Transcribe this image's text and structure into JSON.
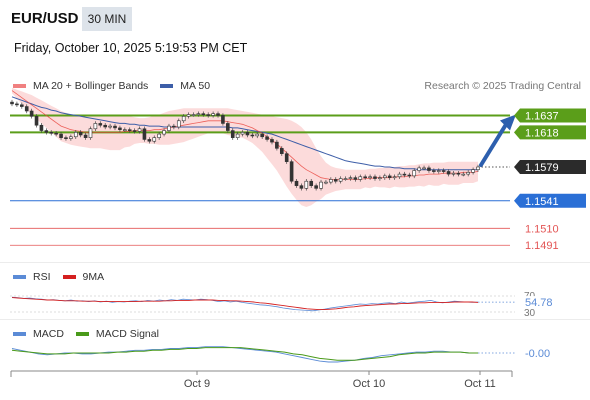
{
  "header": {
    "symbol": "EUR/USD",
    "timeframe": "30 MIN",
    "datetime": "Friday, October 10, 2025 5:19:53 PM CET"
  },
  "main_legend": {
    "ma20_bb": "MA 20 + Bollinger Bands",
    "ma50": "MA 50",
    "credit": "Research © 2025 Trading Central"
  },
  "rsi_legend": {
    "rsi": "RSI",
    "ma9": "9MA"
  },
  "macd_legend": {
    "macd": "MACD",
    "signal": "MACD Signal"
  },
  "colors": {
    "ma20": "#e8413a",
    "bollinger_fill": "#fbd5d5",
    "ma50": "#3d5ea8",
    "resistance": "#5b9e1a",
    "support": "#2a6fd6",
    "target": "#e35555",
    "arrow": "#2d5fae",
    "price_tag": "#2b2b2b",
    "rsi": "#5b8bd6",
    "macd_signal": "#4a9a1a"
  },
  "chart_data": [
    {
      "type": "candlestick",
      "title": "EUR/USD 30 MIN",
      "x_ticks": [
        "Oct 9",
        "Oct 10",
        "Oct 11"
      ],
      "y_range": [
        1.148,
        1.166
      ],
      "last_price": 1.1579,
      "levels": [
        {
          "value": 1.1637,
          "label": "1.1637",
          "kind": "resistance"
        },
        {
          "value": 1.1618,
          "label": "1.1618",
          "kind": "resistance"
        },
        {
          "value": 1.1579,
          "label": "1.1579",
          "kind": "last"
        },
        {
          "value": 1.1541,
          "label": "1.1541",
          "kind": "support"
        },
        {
          "value": 1.151,
          "label": "1.1510",
          "kind": "target"
        },
        {
          "value": 1.1491,
          "label": "1.1491",
          "kind": "target"
        }
      ],
      "close": [
        1.165,
        1.1649,
        1.1647,
        1.1642,
        1.1636,
        1.1626,
        1.162,
        1.1618,
        1.1617,
        1.1616,
        1.1612,
        1.1611,
        1.1613,
        1.1618,
        1.1615,
        1.1612,
        1.1622,
        1.1628,
        1.1626,
        1.1624,
        1.1625,
        1.1623,
        1.1621,
        1.1621,
        1.162,
        1.1619,
        1.1622,
        1.161,
        1.1608,
        1.1612,
        1.1616,
        1.162,
        1.1625,
        1.1624,
        1.1631,
        1.1636,
        1.1638,
        1.1638,
        1.1639,
        1.1638,
        1.1637,
        1.1639,
        1.1637,
        1.1628,
        1.162,
        1.1612,
        1.1616,
        1.1618,
        1.1615,
        1.1614,
        1.1616,
        1.1613,
        1.161,
        1.1607,
        1.16,
        1.1594,
        1.1585,
        1.1563,
        1.1558,
        1.1555,
        1.1563,
        1.1558,
        1.1555,
        1.1562,
        1.1562,
        1.1565,
        1.1563,
        1.1566,
        1.1566,
        1.1567,
        1.1565,
        1.1568,
        1.1567,
        1.1568,
        1.1566,
        1.1567,
        1.1569,
        1.1567,
        1.1568,
        1.1571,
        1.157,
        1.1569,
        1.1575,
        1.1578,
        1.1578,
        1.1575,
        1.1574,
        1.1575,
        1.1574,
        1.1571,
        1.1572,
        1.1571,
        1.1571,
        1.1573,
        1.1576,
        1.1579
      ],
      "ma20": [
        1.1665,
        1.1661,
        1.1657,
        1.1653,
        1.1649,
        1.1645,
        1.1641,
        1.1637,
        1.1633,
        1.1629,
        1.1625,
        1.1623,
        1.1621,
        1.162,
        1.1619,
        1.1618,
        1.1618,
        1.1618,
        1.1618,
        1.1618,
        1.1618,
        1.1618,
        1.1618,
        1.1619,
        1.1619,
        1.162,
        1.162,
        1.162,
        1.162,
        1.1621,
        1.1621,
        1.1622,
        1.1623,
        1.1624,
        1.1625,
        1.1626,
        1.1627,
        1.1628,
        1.1629,
        1.163,
        1.1631,
        1.1631,
        1.1631,
        1.1631,
        1.163,
        1.1629,
        1.1628,
        1.1627,
        1.1625,
        1.1623,
        1.162,
        1.1617,
        1.1613,
        1.1609,
        1.1605,
        1.16,
        1.1595,
        1.159,
        1.1585,
        1.158,
        1.1576,
        1.1573,
        1.157,
        1.1567,
        1.1566,
        1.1565,
        1.1565,
        1.1565,
        1.1565,
        1.1565,
        1.1565,
        1.1565,
        1.1566,
        1.1566,
        1.1567,
        1.1567,
        1.1567,
        1.1567,
        1.1568,
        1.1568,
        1.1568,
        1.1569,
        1.1569,
        1.157,
        1.157,
        1.1571,
        1.1571,
        1.1571,
        1.1572,
        1.1572,
        1.1572,
        1.1572,
        1.1573,
        1.1573,
        1.1573,
        1.1574
      ],
      "bb_upper": [
        1.1668,
        1.1666,
        1.1664,
        1.1662,
        1.166,
        1.1657,
        1.1654,
        1.1651,
        1.1648,
        1.1645,
        1.1642,
        1.164,
        1.1638,
        1.1637,
        1.1636,
        1.1636,
        1.1636,
        1.1636,
        1.1636,
        1.1637,
        1.1638,
        1.1638,
        1.1638,
        1.1637,
        1.1636,
        1.1635,
        1.1634,
        1.1634,
        1.1635,
        1.1637,
        1.1638,
        1.164,
        1.1642,
        1.1643,
        1.1644,
        1.1645,
        1.1645,
        1.1645,
        1.1645,
        1.1645,
        1.1645,
        1.1645,
        1.1645,
        1.1645,
        1.1645,
        1.1644,
        1.1643,
        1.1642,
        1.1641,
        1.164,
        1.1639,
        1.1638,
        1.1637,
        1.1636,
        1.1635,
        1.1634,
        1.1633,
        1.1631,
        1.1628,
        1.1624,
        1.1618,
        1.161,
        1.16,
        1.1591,
        1.1584,
        1.158,
        1.1578,
        1.1577,
        1.1576,
        1.1576,
        1.1576,
        1.1576,
        1.1576,
        1.1577,
        1.1577,
        1.1578,
        1.1578,
        1.1579,
        1.1579,
        1.158,
        1.158,
        1.1581,
        1.1581,
        1.1582,
        1.1583,
        1.1583,
        1.1584,
        1.1584,
        1.1584,
        1.1585,
        1.1585,
        1.1585,
        1.1585,
        1.1585,
        1.1585,
        1.1585
      ],
      "bb_lower": [
        1.1662,
        1.1656,
        1.165,
        1.1644,
        1.1638,
        1.1633,
        1.1628,
        1.1623,
        1.1618,
        1.1613,
        1.1608,
        1.1606,
        1.1604,
        1.1603,
        1.1602,
        1.1601,
        1.16,
        1.16,
        1.16,
        1.1599,
        1.1598,
        1.1598,
        1.1598,
        1.1601,
        1.1602,
        1.1605,
        1.1606,
        1.1606,
        1.1605,
        1.1605,
        1.1604,
        1.1604,
        1.1604,
        1.1605,
        1.1606,
        1.1607,
        1.1609,
        1.1611,
        1.1613,
        1.1615,
        1.1617,
        1.1617,
        1.1617,
        1.1617,
        1.1615,
        1.1614,
        1.1613,
        1.1612,
        1.1609,
        1.1606,
        1.1601,
        1.1596,
        1.1589,
        1.1582,
        1.1575,
        1.1566,
        1.1557,
        1.1549,
        1.1542,
        1.1536,
        1.1534,
        1.1536,
        1.154,
        1.1543,
        1.1548,
        1.155,
        1.1552,
        1.1553,
        1.1554,
        1.1554,
        1.1554,
        1.1554,
        1.1556,
        1.1555,
        1.1557,
        1.1556,
        1.1556,
        1.1555,
        1.1557,
        1.1556,
        1.1556,
        1.1557,
        1.1557,
        1.1558,
        1.1557,
        1.1559,
        1.1558,
        1.1558,
        1.156,
        1.1559,
        1.1559,
        1.1559,
        1.1561,
        1.1561,
        1.1561,
        1.1563
      ],
      "ma50": [
        1.1658,
        1.1656,
        1.1654,
        1.1652,
        1.165,
        1.1648,
        1.1646,
        1.1645,
        1.1643,
        1.1642,
        1.164,
        1.1639,
        1.1638,
        1.1637,
        1.1636,
        1.1635,
        1.1634,
        1.1633,
        1.1632,
        1.1631,
        1.163,
        1.1629,
        1.1628,
        1.1628,
        1.1627,
        1.1627,
        1.1626,
        1.1626,
        1.1625,
        1.1625,
        1.1625,
        1.1624,
        1.1624,
        1.1624,
        1.1624,
        1.1624,
        1.1624,
        1.1624,
        1.1624,
        1.1624,
        1.1624,
        1.1624,
        1.1624,
        1.1624,
        1.1624,
        1.1623,
        1.1623,
        1.1622,
        1.1621,
        1.162,
        1.1619,
        1.1618,
        1.1617,
        1.1616,
        1.1614,
        1.1612,
        1.161,
        1.1608,
        1.1606,
        1.1604,
        1.1602,
        1.16,
        1.1598,
        1.1596,
        1.1594,
        1.1592,
        1.159,
        1.1588,
        1.1586,
        1.1585,
        1.1584,
        1.1583,
        1.1582,
        1.1581,
        1.158,
        1.158,
        1.1579,
        1.1579,
        1.1578,
        1.1578,
        1.1577,
        1.1577,
        1.1577,
        1.1576,
        1.1576,
        1.1576,
        1.1576,
        1.1576,
        1.1576,
        1.1576,
        1.1576,
        1.1576,
        1.1576,
        1.1576,
        1.1576,
        1.1576
      ]
    },
    {
      "type": "line",
      "title": "RSI",
      "y_ticks": [
        30,
        70
      ],
      "y_range": [
        30,
        70
      ],
      "last_value_label": "54.78",
      "rsi": [
        67,
        66,
        64,
        65,
        63,
        62,
        60,
        61,
        59,
        58,
        60,
        57,
        58,
        56,
        58,
        55,
        57,
        54,
        56,
        55,
        57,
        58,
        56,
        59,
        57,
        60,
        58,
        61,
        59,
        62,
        61,
        60,
        62,
        61,
        59,
        56,
        58,
        55,
        57,
        54,
        52,
        50,
        48,
        47,
        45,
        43,
        40,
        38,
        36,
        35,
        34,
        33,
        35,
        37,
        40,
        42,
        44,
        46,
        48,
        50,
        49,
        51,
        50,
        52,
        53,
        51,
        55,
        52,
        54,
        56,
        57,
        59,
        55,
        53,
        55,
        57,
        56,
        55,
        54,
        55
      ],
      "ma9": [
        66,
        65,
        64,
        63,
        62,
        61,
        60,
        60,
        59,
        58,
        58,
        58,
        57,
        57,
        57,
        56,
        56,
        56,
        56,
        56,
        56,
        56,
        57,
        57,
        57,
        57,
        58,
        58,
        59,
        59,
        59,
        60,
        60,
        60,
        60,
        59,
        59,
        58,
        58,
        57,
        56,
        55,
        53,
        52,
        50,
        48,
        46,
        44,
        42,
        40,
        38,
        37,
        36,
        36,
        37,
        38,
        40,
        42,
        43,
        45,
        46,
        47,
        48,
        49,
        50,
        50,
        51,
        51,
        52,
        53,
        53,
        54,
        54,
        54,
        54,
        55,
        55,
        55,
        55,
        54
      ],
      "last_value": 54.78
    },
    {
      "type": "line",
      "title": "MACD",
      "last_value_label": "-0.00",
      "macd": [
        0.0005,
        0.0003,
        0.0001,
        -0.0001,
        -0.0002,
        -0.0001,
        0.0,
        0.0,
        -0.0001,
        -0.0001,
        0.0,
        0.0001,
        0.0001,
        0.0002,
        0.0003,
        0.0003,
        0.0004,
        0.0004,
        0.0005,
        0.0005,
        0.0006,
        0.0006,
        0.0007,
        0.0007,
        0.0007,
        0.0006,
        0.0005,
        0.0004,
        0.0003,
        0.0002,
        0.0001,
        -0.0001,
        -0.0003,
        -0.0005,
        -0.0007,
        -0.0009,
        -0.001,
        -0.001,
        -0.0009,
        -0.0008,
        -0.0006,
        -0.0005,
        -0.0003,
        -0.0002,
        -0.0001,
        0.0,
        0.0001,
        0.0001,
        0.0002,
        0.0002,
        0.0001,
        0.0001,
        0.0,
        0.0
      ],
      "signal": [
        0.0003,
        0.0002,
        0.0001,
        0.0,
        -0.0001,
        -0.0001,
        -0.0001,
        0.0,
        0.0,
        0.0,
        0.0,
        0.0,
        0.0001,
        0.0001,
        0.0002,
        0.0002,
        0.0003,
        0.0003,
        0.0004,
        0.0004,
        0.0005,
        0.0005,
        0.0006,
        0.0006,
        0.0006,
        0.0006,
        0.0006,
        0.0005,
        0.0004,
        0.0003,
        0.0002,
        0.0001,
        -0.0001,
        -0.0002,
        -0.0004,
        -0.0006,
        -0.0007,
        -0.0008,
        -0.0008,
        -0.0008,
        -0.0007,
        -0.0006,
        -0.0005,
        -0.0004,
        -0.0002,
        -0.0001,
        0.0,
        0.0,
        0.0001,
        0.0001,
        0.0001,
        0.0001,
        0.0,
        0.0
      ],
      "last_value": -0.0
    }
  ]
}
